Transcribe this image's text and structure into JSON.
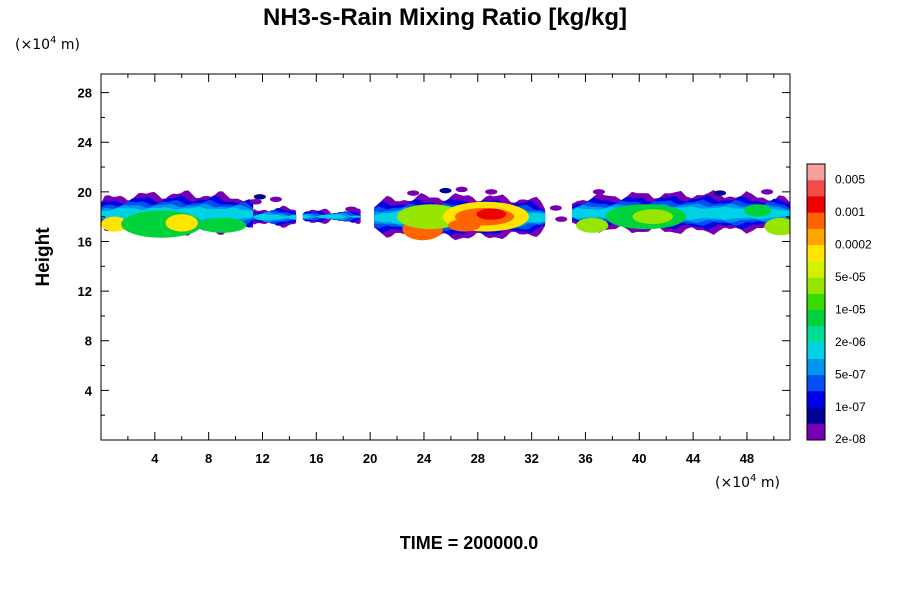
{
  "chart_data": {
    "type": "heatmap",
    "title": "NH3-s-Rain Mixing Ratio [kg/kg]",
    "ylabel": "Height",
    "xlabel": "",
    "x_unit_prefix": "(×10",
    "x_unit_exp": "4",
    "x_unit_suffix": " m)",
    "y_unit_prefix": "(×10",
    "y_unit_exp": "4",
    "y_unit_suffix": " m)",
    "xlim": [
      0,
      51.2
    ],
    "ylim": [
      0,
      29.5
    ],
    "xticks": [
      4,
      8,
      12,
      16,
      20,
      24,
      28,
      32,
      36,
      40,
      44,
      48
    ],
    "yticks": [
      4,
      8,
      12,
      16,
      20,
      24,
      28
    ],
    "footer": "TIME = 200000.0",
    "colorbar": {
      "colors": [
        "#f7a0a0",
        "#f24b4b",
        "#ee0000",
        "#ff6400",
        "#ffa500",
        "#ffe400",
        "#d2f000",
        "#96e600",
        "#36dc00",
        "#00d23c",
        "#00dc96",
        "#00d2e6",
        "#0096f0",
        "#0050f0",
        "#0000e6",
        "#000096",
        "#7800b4"
      ],
      "labels": [
        "0.005",
        "0.001",
        "0.0002",
        "5e-05",
        "1e-05",
        "2e-06",
        "5e-07",
        "1e-07",
        "2e-08"
      ],
      "label_boundary_index": [
        2,
        4,
        6,
        8,
        10,
        12,
        14,
        16,
        18
      ]
    },
    "cloud_bands": [
      {
        "x0": 0.0,
        "x1": 11.3,
        "lo": 16.6,
        "hi": 19.8
      },
      {
        "x0": 11.3,
        "x1": 14.5,
        "lo": 17.3,
        "hi": 18.6
      },
      {
        "x0": 15.0,
        "x1": 19.3,
        "lo": 17.6,
        "hi": 18.4
      },
      {
        "x0": 20.3,
        "x1": 33.0,
        "lo": 16.2,
        "hi": 19.6
      },
      {
        "x0": 35.0,
        "x1": 51.2,
        "lo": 16.7,
        "hi": 19.8
      }
    ],
    "blobs": [
      {
        "x": 1.0,
        "y": 17.4,
        "rx": 1.0,
        "ry": 0.6,
        "level": 5
      },
      {
        "x": 4.5,
        "y": 17.4,
        "rx": 3.0,
        "ry": 1.1,
        "level": 9
      },
      {
        "x": 6.0,
        "y": 17.5,
        "rx": 1.2,
        "ry": 0.7,
        "level": 5
      },
      {
        "x": 9.0,
        "y": 17.3,
        "rx": 1.8,
        "ry": 0.6,
        "level": 9
      },
      {
        "x": 23.9,
        "y": 17.0,
        "rx": 1.5,
        "ry": 0.9,
        "level": 3
      },
      {
        "x": 24.5,
        "y": 18.0,
        "rx": 2.5,
        "ry": 1.0,
        "level": 7
      },
      {
        "x": 28.6,
        "y": 18.0,
        "rx": 3.2,
        "ry": 1.2,
        "level": 5
      },
      {
        "x": 28.5,
        "y": 18.0,
        "rx": 2.2,
        "ry": 0.7,
        "level": 3
      },
      {
        "x": 29.0,
        "y": 18.2,
        "rx": 1.1,
        "ry": 0.45,
        "level": 2
      },
      {
        "x": 27.0,
        "y": 17.3,
        "rx": 1.2,
        "ry": 0.5,
        "level": 3
      },
      {
        "x": 36.5,
        "y": 17.3,
        "rx": 1.2,
        "ry": 0.6,
        "level": 7
      },
      {
        "x": 40.5,
        "y": 18.0,
        "rx": 3.0,
        "ry": 1.0,
        "level": 9
      },
      {
        "x": 41.0,
        "y": 18.0,
        "rx": 1.5,
        "ry": 0.6,
        "level": 7
      },
      {
        "x": 50.5,
        "y": 17.2,
        "rx": 1.2,
        "ry": 0.7,
        "level": 7
      },
      {
        "x": 48.8,
        "y": 18.5,
        "rx": 1.0,
        "ry": 0.5,
        "level": 9
      }
    ],
    "wisps": [
      {
        "x": 11.5,
        "y": 19.2,
        "level": 16
      },
      {
        "x": 11.8,
        "y": 19.6,
        "level": 15
      },
      {
        "x": 13.0,
        "y": 19.4,
        "level": 16
      },
      {
        "x": 18.6,
        "y": 18.6,
        "level": 16
      },
      {
        "x": 23.2,
        "y": 19.9,
        "level": 16
      },
      {
        "x": 25.6,
        "y": 20.1,
        "level": 15
      },
      {
        "x": 26.8,
        "y": 20.2,
        "level": 16
      },
      {
        "x": 29.0,
        "y": 20.0,
        "level": 16
      },
      {
        "x": 33.8,
        "y": 18.7,
        "level": 16
      },
      {
        "x": 34.2,
        "y": 17.8,
        "level": 16
      },
      {
        "x": 37.0,
        "y": 20.0,
        "level": 16
      },
      {
        "x": 46.0,
        "y": 19.9,
        "level": 15
      },
      {
        "x": 49.5,
        "y": 20.0,
        "level": 16
      }
    ]
  }
}
